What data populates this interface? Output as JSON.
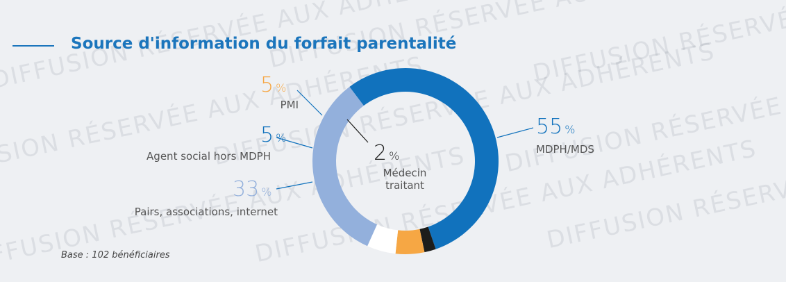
{
  "chart_data": {
    "type": "donut",
    "title": "Source d'information du forfait parentalité",
    "unit": "%",
    "categories": [
      "MDPH/MDS",
      "Médecin traitant",
      "PMI",
      "Agent social hors MDPH",
      "Pairs, associations, internet"
    ],
    "values": [
      55,
      2,
      5,
      5,
      33
    ],
    "colors": [
      "#1172bd",
      "#1d1d1b",
      "#f6a744",
      "#ffffff",
      "#93b0dc"
    ],
    "note": "Base : 102 bénéficiaires",
    "watermark": "DIFFUSION RÉSERVÉE AUX ADHÉRENTS"
  }
}
